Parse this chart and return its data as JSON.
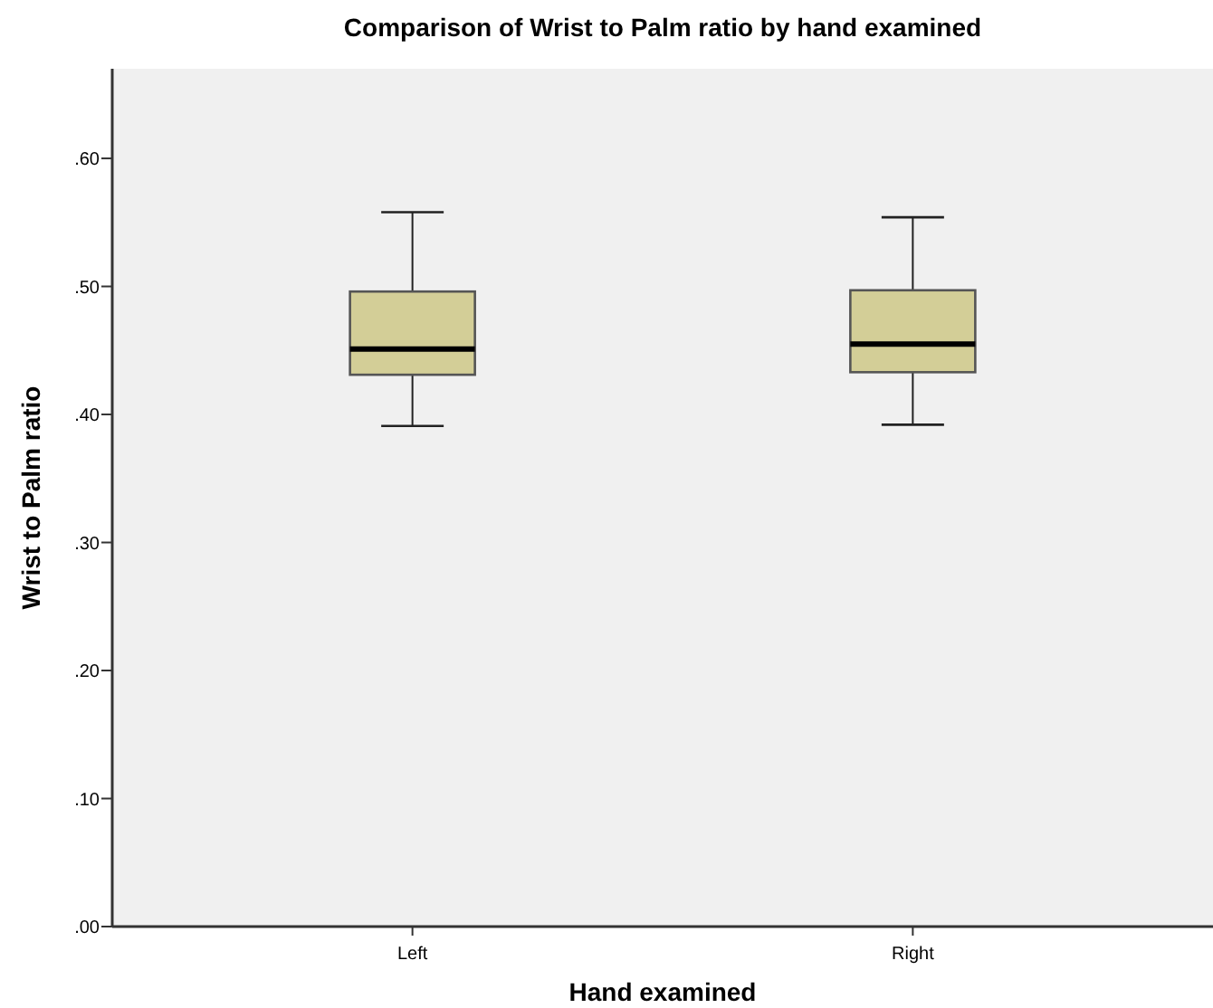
{
  "chart_data": {
    "type": "box",
    "title": "Comparison of Wrist to Palm ratio by hand examined",
    "xlabel": "Hand examined",
    "ylabel": "Wrist to Palm ratio",
    "categories": [
      "Left",
      "Right"
    ],
    "series": [
      {
        "color": "#d3ce97",
        "boxes": [
          {
            "low": 0.391,
            "q1": 0.431,
            "median": 0.451,
            "q3": 0.496,
            "high": 0.558
          },
          {
            "low": 0.392,
            "q1": 0.433,
            "median": 0.455,
            "q3": 0.497,
            "high": 0.554
          }
        ]
      }
    ],
    "ylim": [
      0,
      0.67
    ],
    "yticks": [
      {
        "value": 0,
        "label": ".00"
      },
      {
        "value": 0.1,
        "label": ".10"
      },
      {
        "value": 0.2,
        "label": ".20"
      },
      {
        "value": 0.3,
        "label": ".30"
      },
      {
        "value": 0.4,
        "label": ".40"
      },
      {
        "value": 0.5,
        "label": ".50"
      },
      {
        "value": 0.6,
        "label": ".60"
      }
    ],
    "grid": false
  }
}
